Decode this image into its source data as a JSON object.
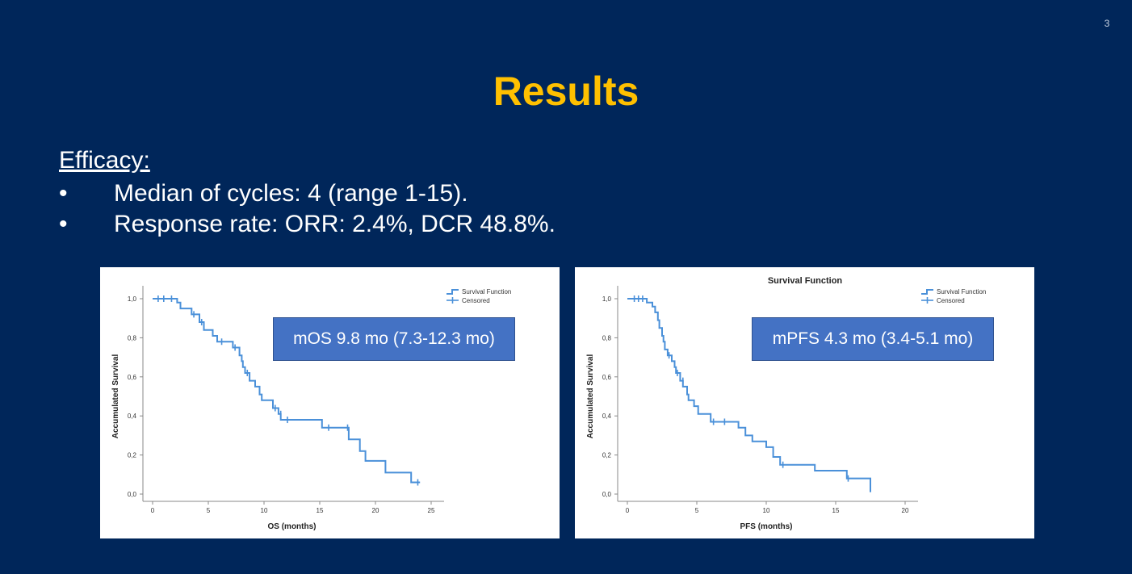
{
  "slide": {
    "page_number": "3",
    "title": "Results",
    "heading": "Efficacy:",
    "bullets": [
      {
        "marker": "•",
        "text": "Median of cycles: 4 (range 1-15)."
      },
      {
        "marker": "•",
        "text": "Response rate: ORR: 2.4%,  DCR 48.8%."
      }
    ]
  },
  "colors": {
    "background": "#00265a",
    "title": "#ffc000",
    "curve": "#4a90d9",
    "median_box": "#4472c4"
  },
  "chart_data": [
    {
      "type": "line",
      "step": true,
      "title": "",
      "xlabel": "OS (months)",
      "ylabel": "Accumulated Survival",
      "xlim": [
        0,
        25
      ],
      "ylim": [
        0,
        1
      ],
      "x_ticks": [
        "0",
        "5",
        "10",
        "15",
        "20",
        "25"
      ],
      "y_ticks": [
        "0,0",
        "0,2",
        "0,4",
        "0,6",
        "0,8",
        "1,0"
      ],
      "legend": {
        "position": "top-right",
        "entries": [
          "Survival Function",
          "Censored"
        ]
      },
      "annotation": "mOS  9.8 mo (7.3-12.3 mo)",
      "series": [
        {
          "name": "Survival Function",
          "points": [
            [
              0,
              1.0
            ],
            [
              2.2,
              1.0
            ],
            [
              2.2,
              0.98
            ],
            [
              2.5,
              0.98
            ],
            [
              2.5,
              0.95
            ],
            [
              3.5,
              0.95
            ],
            [
              3.5,
              0.92
            ],
            [
              4.2,
              0.92
            ],
            [
              4.2,
              0.88
            ],
            [
              4.6,
              0.88
            ],
            [
              4.6,
              0.84
            ],
            [
              5.4,
              0.84
            ],
            [
              5.4,
              0.81
            ],
            [
              5.8,
              0.81
            ],
            [
              5.8,
              0.78
            ],
            [
              7.2,
              0.78
            ],
            [
              7.2,
              0.75
            ],
            [
              7.8,
              0.75
            ],
            [
              7.8,
              0.71
            ],
            [
              8.0,
              0.71
            ],
            [
              8.0,
              0.68
            ],
            [
              8.1,
              0.68
            ],
            [
              8.1,
              0.65
            ],
            [
              8.3,
              0.65
            ],
            [
              8.3,
              0.62
            ],
            [
              8.7,
              0.62
            ],
            [
              8.7,
              0.58
            ],
            [
              9.2,
              0.58
            ],
            [
              9.2,
              0.55
            ],
            [
              9.6,
              0.55
            ],
            [
              9.6,
              0.51
            ],
            [
              9.8,
              0.51
            ],
            [
              9.8,
              0.48
            ],
            [
              10.8,
              0.48
            ],
            [
              10.8,
              0.44
            ],
            [
              11.3,
              0.44
            ],
            [
              11.3,
              0.41
            ],
            [
              11.5,
              0.41
            ],
            [
              11.5,
              0.38
            ],
            [
              15.2,
              0.38
            ],
            [
              15.2,
              0.34
            ],
            [
              17.6,
              0.34
            ],
            [
              17.6,
              0.28
            ],
            [
              18.6,
              0.28
            ],
            [
              18.6,
              0.22
            ],
            [
              19.1,
              0.22
            ],
            [
              19.1,
              0.17
            ],
            [
              20.9,
              0.17
            ],
            [
              20.9,
              0.11
            ],
            [
              23.2,
              0.11
            ],
            [
              23.2,
              0.06
            ],
            [
              24.0,
              0.06
            ]
          ]
        }
      ],
      "censored": [
        [
          0.5,
          1.0
        ],
        [
          1.0,
          1.0
        ],
        [
          1.7,
          1.0
        ],
        [
          3.7,
          0.92
        ],
        [
          4.4,
          0.88
        ],
        [
          6.2,
          0.78
        ],
        [
          7.4,
          0.75
        ],
        [
          8.5,
          0.62
        ],
        [
          11.0,
          0.44
        ],
        [
          11.5,
          0.41
        ],
        [
          12.1,
          0.38
        ],
        [
          15.8,
          0.34
        ],
        [
          17.5,
          0.34
        ],
        [
          23.8,
          0.06
        ]
      ]
    },
    {
      "type": "line",
      "step": true,
      "title": "Survival Function",
      "xlabel": "PFS (months)",
      "ylabel": "Accumulated Survival",
      "xlim": [
        0,
        20
      ],
      "ylim": [
        0,
        1
      ],
      "x_ticks": [
        "0",
        "5",
        "10",
        "15",
        "20"
      ],
      "y_ticks": [
        "0,0",
        "0,2",
        "0,4",
        "0,6",
        "0,8",
        "1,0"
      ],
      "legend": {
        "position": "top-right",
        "entries": [
          "Survival Function",
          "Censored"
        ]
      },
      "annotation": "mPFS 4.3 mo (3.4-5.1 mo)",
      "series": [
        {
          "name": "Survival Function",
          "points": [
            [
              0,
              1.0
            ],
            [
              1.4,
              1.0
            ],
            [
              1.4,
              0.98
            ],
            [
              1.8,
              0.98
            ],
            [
              1.8,
              0.96
            ],
            [
              2.0,
              0.96
            ],
            [
              2.0,
              0.93
            ],
            [
              2.2,
              0.93
            ],
            [
              2.2,
              0.89
            ],
            [
              2.3,
              0.89
            ],
            [
              2.3,
              0.85
            ],
            [
              2.5,
              0.85
            ],
            [
              2.5,
              0.81
            ],
            [
              2.6,
              0.81
            ],
            [
              2.6,
              0.78
            ],
            [
              2.7,
              0.78
            ],
            [
              2.7,
              0.74
            ],
            [
              2.9,
              0.74
            ],
            [
              2.9,
              0.71
            ],
            [
              3.2,
              0.71
            ],
            [
              3.2,
              0.68
            ],
            [
              3.4,
              0.68
            ],
            [
              3.4,
              0.65
            ],
            [
              3.5,
              0.65
            ],
            [
              3.5,
              0.62
            ],
            [
              3.8,
              0.62
            ],
            [
              3.8,
              0.58
            ],
            [
              4.0,
              0.58
            ],
            [
              4.0,
              0.55
            ],
            [
              4.3,
              0.55
            ],
            [
              4.3,
              0.51
            ],
            [
              4.4,
              0.51
            ],
            [
              4.4,
              0.48
            ],
            [
              4.8,
              0.48
            ],
            [
              4.8,
              0.45
            ],
            [
              5.1,
              0.45
            ],
            [
              5.1,
              0.41
            ],
            [
              6.0,
              0.41
            ],
            [
              6.0,
              0.37
            ],
            [
              8.0,
              0.37
            ],
            [
              8.0,
              0.34
            ],
            [
              8.5,
              0.34
            ],
            [
              8.5,
              0.3
            ],
            [
              9.0,
              0.3
            ],
            [
              9.0,
              0.27
            ],
            [
              10.0,
              0.27
            ],
            [
              10.0,
              0.24
            ],
            [
              10.5,
              0.24
            ],
            [
              10.5,
              0.19
            ],
            [
              11.0,
              0.19
            ],
            [
              11.0,
              0.15
            ],
            [
              13.5,
              0.15
            ],
            [
              13.5,
              0.12
            ],
            [
              15.8,
              0.12
            ],
            [
              15.8,
              0.08
            ],
            [
              17.5,
              0.08
            ],
            [
              17.5,
              0.01
            ]
          ]
        }
      ],
      "censored": [
        [
          0.5,
          1.0
        ],
        [
          0.8,
          1.0
        ],
        [
          1.1,
          1.0
        ],
        [
          3.0,
          0.71
        ],
        [
          3.6,
          0.62
        ],
        [
          4.0,
          0.58
        ],
        [
          6.2,
          0.37
        ],
        [
          7.0,
          0.37
        ],
        [
          11.2,
          0.15
        ],
        [
          15.9,
          0.08
        ]
      ]
    }
  ]
}
